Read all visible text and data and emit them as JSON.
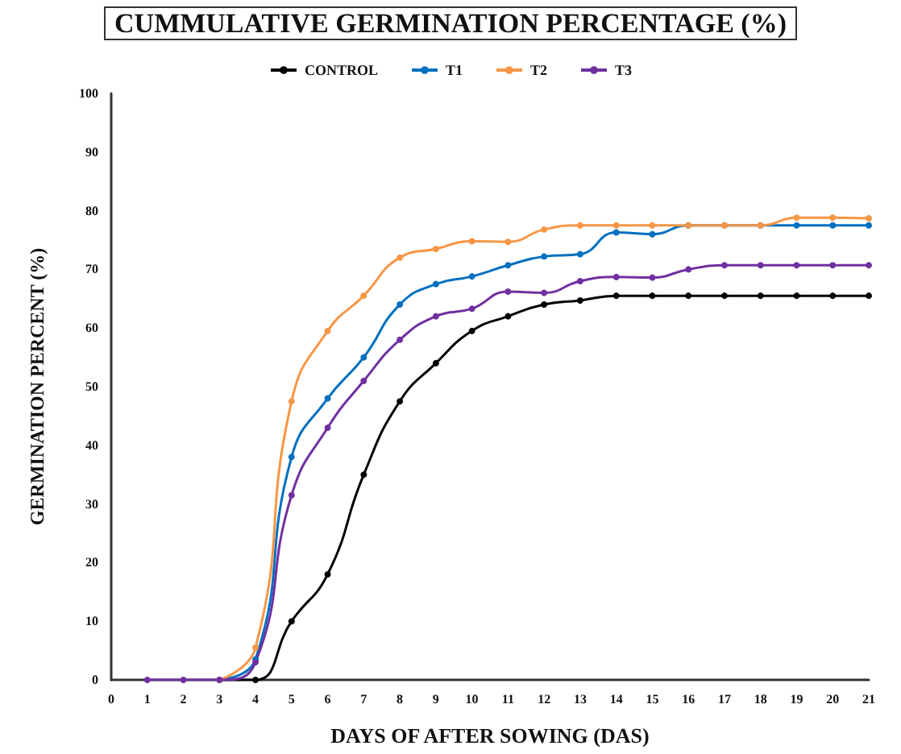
{
  "chart_data": {
    "type": "line",
    "title": "CUMMULATIVE GERMINATION PERCENTAGE (%)",
    "xlabel": "DAYS OF AFTER SOWING (DAS)",
    "ylabel": "GERMINATION PERCENT (%)",
    "x": [
      1,
      2,
      3,
      4,
      5,
      6,
      7,
      8,
      9,
      10,
      11,
      12,
      13,
      14,
      15,
      16,
      17,
      18,
      19,
      20,
      21
    ],
    "series": [
      {
        "name": "CONTROL",
        "color": "#000000",
        "values": [
          null,
          null,
          0,
          0,
          10,
          18,
          35,
          47.5,
          54,
          59.5,
          62,
          64,
          64.7,
          65.5,
          65.5,
          65.5,
          65.5,
          65.5,
          65.5,
          65.5,
          65.5
        ]
      },
      {
        "name": "T1",
        "color": "#0070c0",
        "values": [
          null,
          null,
          0,
          3.5,
          38,
          48,
          55,
          64,
          67.5,
          68.8,
          70.7,
          72.2,
          72.6,
          76.3,
          76,
          77.5,
          77.5,
          77.5,
          77.5,
          77.5,
          77.5
        ]
      },
      {
        "name": "T2",
        "color": "#f79646",
        "values": [
          null,
          null,
          0,
          5.5,
          47.5,
          59.5,
          65.5,
          72,
          73.5,
          74.8,
          74.7,
          76.8,
          77.5,
          77.5,
          77.5,
          77.5,
          77.5,
          77.5,
          78.8,
          78.8,
          78.7
        ]
      },
      {
        "name": "T3",
        "color": "#7030a0",
        "values": [
          0,
          0,
          0,
          3,
          31.5,
          43,
          51,
          58,
          62,
          63.3,
          66.2,
          66,
          68,
          68.7,
          68.6,
          70,
          70.7,
          70.7,
          70.7,
          70.7,
          70.7
        ]
      }
    ],
    "xlim": [
      0,
      21
    ],
    "xticks": [
      0,
      1,
      2,
      3,
      4,
      5,
      6,
      7,
      8,
      9,
      10,
      11,
      12,
      13,
      14,
      15,
      16,
      17,
      18,
      19,
      20,
      21
    ],
    "ylim": [
      0,
      100
    ],
    "yticks": [
      0,
      10,
      20,
      30,
      40,
      50,
      60,
      70,
      80,
      90,
      100
    ],
    "grid": false,
    "legend": "top",
    "marker": "circle",
    "line_style": "solid"
  }
}
